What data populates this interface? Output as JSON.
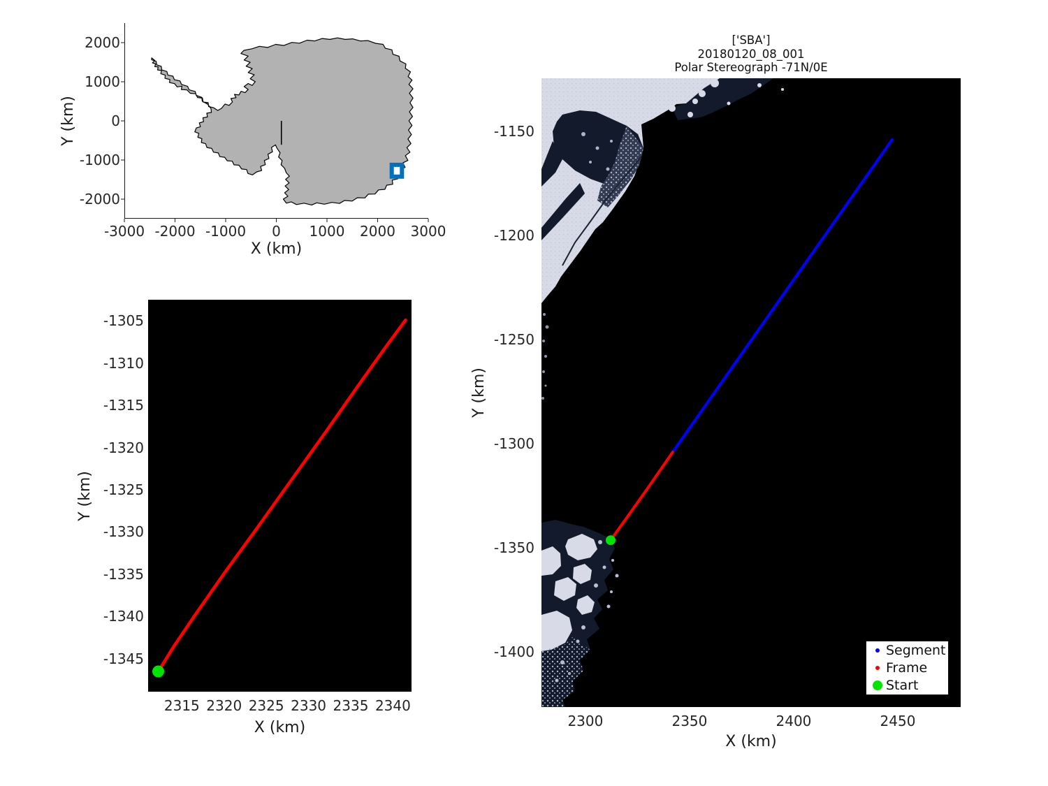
{
  "colors": {
    "segment_blue": "#0000ff",
    "frame_red": "#ff0000",
    "start_green": "#00e400",
    "overview_box_blue": "#0072BD",
    "land_gray": "#b2b2b2",
    "coast_black": "#000000",
    "ocean_black": "#000000",
    "sea_ice_light": "#d8dbe7",
    "water_navy": "#121a2b"
  },
  "chart_data": [
    {
      "id": "overview",
      "type": "line",
      "subtype": "antarctica-overview-map",
      "xlabel": "X (km)",
      "ylabel": "Y (km)",
      "xlim": [
        -3000,
        3000
      ],
      "ylim": [
        -2500,
        2500
      ],
      "xticks": [
        -3000,
        -2000,
        -1000,
        0,
        1000,
        2000,
        3000
      ],
      "yticks": [
        2000,
        1000,
        0,
        -1000,
        -2000
      ],
      "region_box": {
        "x": [
          2279,
          2480
        ],
        "y": [
          -1426,
          -1124
        ],
        "color": "#0072BD"
      },
      "meridian_line": {
        "x": 100,
        "y_from": 0,
        "y_to": -610
      }
    },
    {
      "id": "detail",
      "type": "line",
      "subtype": "frame-track-zoom",
      "xlabel": "X (km)",
      "ylabel": "Y (km)",
      "xlim": [
        2311.0,
        2342.2
      ],
      "ylim": [
        -1348.9,
        -1302.5
      ],
      "xticks": [
        2315,
        2320,
        2325,
        2330,
        2335,
        2340
      ],
      "yticks": [
        -1305,
        -1310,
        -1315,
        -1320,
        -1325,
        -1330,
        -1335,
        -1340,
        -1345
      ],
      "background": "#000000",
      "series": [
        {
          "name": "Frame",
          "color": "#ff0000",
          "points": [
            [
              2312.2,
              -1346.5
            ],
            [
              2314.0,
              -1343.6
            ],
            [
              2316.5,
              -1339.9
            ],
            [
              2320.0,
              -1334.9
            ],
            [
              2324.0,
              -1329.4
            ],
            [
              2328.0,
              -1323.8
            ],
            [
              2332.0,
              -1318.2
            ],
            [
              2336.0,
              -1312.5
            ],
            [
              2339.0,
              -1308.3
            ],
            [
              2341.5,
              -1304.9
            ]
          ]
        }
      ],
      "start_marker": {
        "x": 2312.2,
        "y": -1346.5,
        "color": "#00e400"
      }
    },
    {
      "id": "main",
      "type": "line",
      "subtype": "track-over-satellite-image",
      "title_lines": [
        "['SBA']",
        "20180120_08_001",
        "Polar Stereograph -71N/0E"
      ],
      "xlabel": "X (km)",
      "ylabel": "Y (km)",
      "xlim": [
        2278.9,
        2480.2
      ],
      "ylim": [
        -1426.4,
        -1124.5
      ],
      "xticks": [
        2300,
        2350,
        2400,
        2450
      ],
      "yticks": [
        -1150,
        -1200,
        -1250,
        -1300,
        -1350,
        -1400
      ],
      "background": "#000000",
      "series": [
        {
          "name": "Segment",
          "color": "#0000ff",
          "points": [
            [
              2341.9,
              -1304.0
            ],
            [
              2447.3,
              -1154.0
            ]
          ]
        },
        {
          "name": "Frame",
          "color": "#ff0000",
          "points": [
            [
              2312.1,
              -1346.3
            ],
            [
              2320.0,
              -1335.3
            ],
            [
              2330.0,
              -1321.2
            ],
            [
              2341.9,
              -1304.0
            ]
          ]
        }
      ],
      "start_marker": {
        "x": 2312.1,
        "y": -1346.3,
        "color": "#00e400"
      },
      "legend": [
        {
          "label": "Segment",
          "color": "#0000ff",
          "marker": "small"
        },
        {
          "label": "Frame",
          "color": "#ff0000",
          "marker": "small"
        },
        {
          "label": "Start",
          "color": "#00e400",
          "marker": "large"
        }
      ]
    }
  ]
}
